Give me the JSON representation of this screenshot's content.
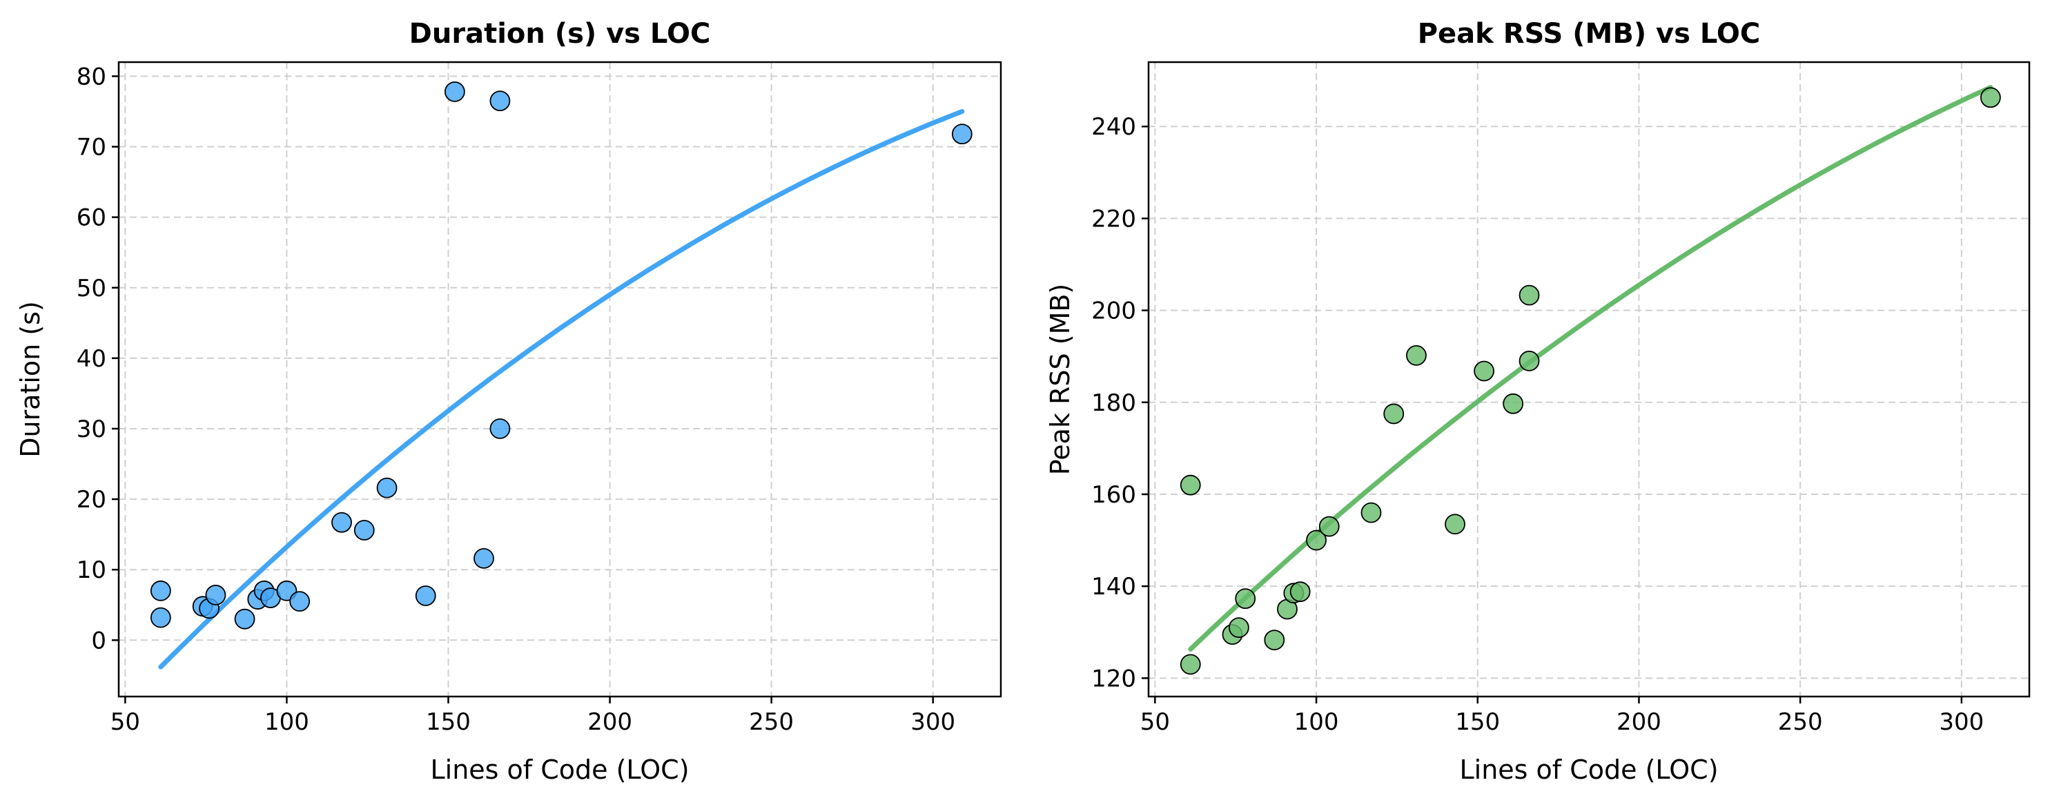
{
  "chart_data": [
    {
      "type": "scatter",
      "title": "Duration (s) vs LOC",
      "xlabel": "Lines of Code (LOC)",
      "ylabel": "Duration (s)",
      "xlim": [
        48,
        321
      ],
      "ylim": [
        -8,
        82
      ],
      "xticks": [
        50,
        100,
        150,
        200,
        250,
        300
      ],
      "yticks": [
        0,
        10,
        20,
        30,
        40,
        50,
        60,
        70,
        80
      ],
      "grid": true,
      "color": "#42A5F5",
      "points": [
        {
          "x": 61,
          "y": 7.0
        },
        {
          "x": 61,
          "y": 3.2
        },
        {
          "x": 74,
          "y": 4.8
        },
        {
          "x": 76,
          "y": 4.5
        },
        {
          "x": 78,
          "y": 6.4
        },
        {
          "x": 87,
          "y": 3.0
        },
        {
          "x": 91,
          "y": 5.8
        },
        {
          "x": 93,
          "y": 7.0
        },
        {
          "x": 95,
          "y": 6.0
        },
        {
          "x": 100,
          "y": 7.0
        },
        {
          "x": 104,
          "y": 5.5
        },
        {
          "x": 117,
          "y": 16.7
        },
        {
          "x": 124,
          "y": 15.6
        },
        {
          "x": 131,
          "y": 21.6
        },
        {
          "x": 143,
          "y": 6.3
        },
        {
          "x": 152,
          "y": 77.8
        },
        {
          "x": 161,
          "y": 11.6
        },
        {
          "x": 166,
          "y": 76.5
        },
        {
          "x": 166,
          "y": 30.0
        },
        {
          "x": 309,
          "y": 71.8
        }
      ],
      "fit": {
        "type": "quadratic",
        "x_range": [
          61,
          309
        ],
        "points": [
          {
            "x": 61,
            "y": -3.8
          },
          {
            "x": 100,
            "y": 13.7
          },
          {
            "x": 150,
            "y": 32.7
          },
          {
            "x": 200,
            "y": 49.0
          },
          {
            "x": 250,
            "y": 62.5
          },
          {
            "x": 309,
            "y": 75.0
          }
        ]
      }
    },
    {
      "type": "scatter",
      "title": "Peak RSS (MB) vs LOC",
      "xlabel": "Lines of Code (LOC)",
      "ylabel": "Peak RSS (MB)",
      "xlim": [
        48,
        321
      ],
      "ylim": [
        116,
        254
      ],
      "xticks": [
        50,
        100,
        150,
        200,
        250,
        300
      ],
      "yticks": [
        120,
        140,
        160,
        180,
        200,
        220,
        240
      ],
      "grid": true,
      "color": "#66BB6A",
      "points": [
        {
          "x": 61,
          "y": 162
        },
        {
          "x": 61,
          "y": 123
        },
        {
          "x": 74,
          "y": 129.5
        },
        {
          "x": 76,
          "y": 131
        },
        {
          "x": 78,
          "y": 137.3
        },
        {
          "x": 87,
          "y": 128.3
        },
        {
          "x": 91,
          "y": 135
        },
        {
          "x": 93,
          "y": 138.5
        },
        {
          "x": 95,
          "y": 138.8
        },
        {
          "x": 100,
          "y": 150
        },
        {
          "x": 104,
          "y": 153
        },
        {
          "x": 117,
          "y": 156
        },
        {
          "x": 124,
          "y": 177.5
        },
        {
          "x": 131,
          "y": 190.2
        },
        {
          "x": 143,
          "y": 153.5
        },
        {
          "x": 152,
          "y": 186.8
        },
        {
          "x": 161,
          "y": 179.7
        },
        {
          "x": 166,
          "y": 203.3
        },
        {
          "x": 166,
          "y": 189
        },
        {
          "x": 309,
          "y": 246.3
        }
      ],
      "fit": {
        "type": "quadratic",
        "x_range": [
          61,
          309
        ],
        "points": [
          {
            "x": 61,
            "y": 126.3
          },
          {
            "x": 100,
            "y": 150.5
          },
          {
            "x": 150,
            "y": 179.5
          },
          {
            "x": 200,
            "y": 205.5
          },
          {
            "x": 250,
            "y": 227.5
          },
          {
            "x": 309,
            "y": 248.5
          }
        ]
      }
    }
  ]
}
